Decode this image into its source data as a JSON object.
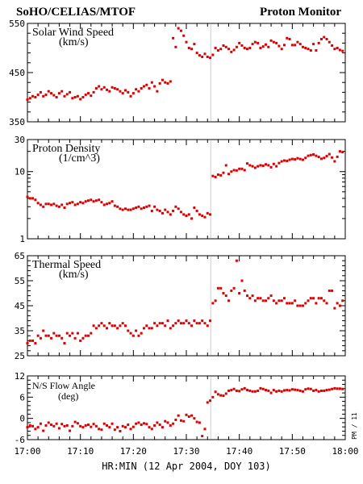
{
  "header": {
    "left_title": "SoHO/CELIAS/MTOF",
    "right_title": "Proton Monitor"
  },
  "side_label": "PM / 11",
  "xlabel": "HR:MIN (12 Apr 2004, DOY 103)",
  "colors": {
    "data": "#dd0000",
    "axis": "#000000",
    "event_line": "#cccccc"
  },
  "chart_data": [
    {
      "type": "scatter",
      "title": "Solar Wind Speed",
      "unit": "(km/s)",
      "x_ticks": [
        "17:00",
        "17:10",
        "17:20",
        "17:30",
        "17:40",
        "17:50",
        "18:00"
      ],
      "xlim_min": [
        0,
        60
      ],
      "ylim": [
        350,
        550
      ],
      "y_ticks": [
        350,
        450,
        550
      ],
      "event_line_min": 34.6,
      "series": [
        {
          "x": [
            0.0,
            0.5,
            1.0,
            1.5,
            2.0,
            2.5,
            3.0,
            3.5,
            4.0,
            4.5,
            5.0,
            5.5,
            6.0,
            6.5,
            7.0,
            7.5,
            8.0,
            8.5,
            9.0,
            9.5,
            10.0,
            10.5,
            11.0,
            11.5,
            12.0,
            12.5,
            13.0,
            13.5,
            14.0,
            14.5,
            15.0,
            15.5,
            16.0,
            16.5,
            17.0,
            17.5,
            18.0,
            18.5,
            19.0,
            19.5,
            20.0,
            20.5,
            21.0,
            21.5,
            22.0,
            22.5,
            23.0,
            23.5,
            24.0,
            24.5,
            25.0,
            25.5,
            26.0,
            26.5,
            27.0,
            27.5,
            28.0,
            28.5,
            29.0,
            29.5,
            30.0,
            30.5,
            31.0,
            31.5,
            32.0,
            32.5,
            33.0,
            33.5,
            34.0,
            34.5,
            35.0,
            35.5,
            36.0,
            36.5,
            37.0,
            37.5,
            38.0,
            38.5,
            39.0,
            39.5,
            40.0,
            40.5,
            41.0,
            41.5,
            42.0,
            42.5,
            43.0,
            43.5,
            44.0,
            44.5,
            45.0,
            45.5,
            46.0,
            46.5,
            47.0,
            47.5,
            48.0,
            48.5,
            49.0,
            49.5,
            50.0,
            50.5,
            51.0,
            51.5,
            52.0,
            52.5,
            53.0,
            53.5,
            54.0,
            54.5,
            55.0,
            55.5,
            56.0,
            56.5,
            57.0,
            57.5,
            58.0,
            58.5,
            59.0,
            59.5
          ],
          "y": [
            395,
            398,
            402,
            400,
            405,
            410,
            402,
            405,
            412,
            408,
            404,
            400,
            408,
            412,
            402,
            406,
            410,
            398,
            400,
            402,
            396,
            400,
            405,
            408,
            403,
            410,
            418,
            422,
            416,
            420,
            415,
            412,
            420,
            418,
            416,
            412,
            408,
            414,
            410,
            402,
            408,
            416,
            412,
            418,
            422,
            425,
            418,
            430,
            422,
            412,
            428,
            435,
            430,
            428,
            432,
            520,
            502,
            540,
            535,
            525,
            512,
            500,
            498,
            508,
            490,
            485,
            482,
            488,
            482,
            480,
            486,
            500,
            495,
            498,
            505,
            502,
            498,
            492,
            496,
            502,
            510,
            505,
            500,
            498,
            500,
            508,
            512,
            510,
            500,
            503,
            507,
            502,
            515,
            512,
            510,
            504,
            498,
            506,
            520,
            518,
            506,
            506,
            512,
            508,
            502,
            500,
            498,
            495,
            508,
            495,
            510,
            518,
            522,
            518,
            512,
            505,
            498,
            500,
            496,
            494
          ]
        }
      ]
    },
    {
      "type": "scatter",
      "title": "Proton Density",
      "unit": "(1/cm^3)",
      "x_ticks": [
        "17:00",
        "17:10",
        "17:20",
        "17:30",
        "17:40",
        "17:50",
        "18:00"
      ],
      "xlim_min": [
        0,
        60
      ],
      "ylim": [
        1,
        30
      ],
      "log_scale": true,
      "y_ticks": [
        1,
        10,
        30
      ],
      "event_line_min": 34.6,
      "series": [
        {
          "x": [
            0.0,
            0.5,
            1.0,
            1.5,
            2.0,
            2.5,
            3.0,
            3.5,
            4.0,
            4.5,
            5.0,
            5.5,
            6.0,
            6.5,
            7.0,
            7.5,
            8.0,
            8.5,
            9.0,
            9.5,
            10.0,
            10.5,
            11.0,
            11.5,
            12.0,
            12.5,
            13.0,
            13.5,
            14.0,
            14.5,
            15.0,
            15.5,
            16.0,
            16.5,
            17.0,
            17.5,
            18.0,
            18.5,
            19.0,
            19.5,
            20.0,
            20.5,
            21.0,
            21.5,
            22.0,
            22.5,
            23.0,
            23.5,
            24.0,
            24.5,
            25.0,
            25.5,
            26.0,
            26.5,
            27.0,
            27.5,
            28.0,
            28.5,
            29.0,
            29.5,
            30.0,
            30.5,
            31.0,
            31.5,
            32.0,
            32.5,
            33.0,
            33.5,
            34.0,
            34.5,
            35.0,
            35.5,
            36.0,
            36.5,
            37.0,
            37.5,
            38.0,
            38.5,
            39.0,
            39.5,
            40.0,
            40.5,
            41.0,
            41.5,
            42.0,
            42.5,
            43.0,
            43.5,
            44.0,
            44.5,
            45.0,
            45.5,
            46.0,
            46.5,
            47.0,
            47.5,
            48.0,
            48.5,
            49.0,
            49.5,
            50.0,
            50.5,
            51.0,
            51.5,
            52.0,
            52.5,
            53.0,
            53.5,
            54.0,
            54.5,
            55.0,
            55.5,
            56.0,
            56.5,
            57.0,
            57.5,
            58.0,
            58.5,
            59.0,
            59.5
          ],
          "y": [
            4.2,
            4.0,
            4.0,
            3.8,
            3.4,
            3.2,
            3.0,
            3.3,
            3.3,
            3.2,
            3.3,
            3.1,
            3.0,
            3.2,
            2.9,
            3.3,
            3.4,
            3.5,
            3.2,
            3.3,
            3.5,
            3.4,
            3.6,
            3.7,
            3.8,
            3.6,
            3.7,
            3.8,
            3.5,
            3.2,
            3.3,
            3.4,
            3.6,
            3.1,
            3.0,
            2.8,
            2.7,
            2.8,
            2.7,
            2.7,
            2.8,
            2.9,
            3.0,
            2.8,
            2.9,
            3.0,
            3.1,
            2.6,
            3.0,
            2.7,
            2.6,
            2.4,
            2.7,
            2.5,
            2.3,
            2.6,
            3.0,
            2.8,
            2.5,
            2.3,
            2.2,
            2.3,
            2.0,
            2.9,
            2.6,
            2.3,
            2.2,
            2.1,
            2.4,
            2.3,
            8.6,
            8.3,
            9.0,
            8.8,
            9.6,
            12.4,
            9.2,
            10.0,
            10.5,
            10.4,
            11.0,
            11.0,
            10.5,
            13.2,
            12.4,
            12.0,
            11.4,
            12.0,
            12.4,
            12.2,
            12.8,
            12.4,
            11.6,
            13.0,
            12.0,
            13.4,
            14.2,
            14.6,
            14.4,
            15.0,
            15.4,
            15.2,
            15.8,
            15.4,
            15.0,
            16.0,
            17.2,
            17.6,
            18.0,
            17.2,
            16.5,
            15.5,
            16.0,
            17.0,
            18.2,
            16.2,
            14.2,
            16.6,
            20.0,
            19.5
          ]
        }
      ]
    },
    {
      "type": "scatter",
      "title": "Thermal Speed",
      "unit": "(km/s)",
      "x_ticks": [
        "17:00",
        "17:10",
        "17:20",
        "17:30",
        "17:40",
        "17:50",
        "18:00"
      ],
      "xlim_min": [
        0,
        60
      ],
      "ylim": [
        25,
        65
      ],
      "y_ticks": [
        25,
        35,
        45,
        55,
        65
      ],
      "event_line_min": 34.6,
      "series": [
        {
          "x": [
            0.0,
            0.5,
            1.0,
            1.5,
            2.0,
            2.5,
            3.0,
            3.5,
            4.0,
            4.5,
            5.0,
            5.5,
            6.0,
            6.5,
            7.0,
            7.5,
            8.0,
            8.5,
            9.0,
            9.5,
            10.0,
            10.5,
            11.0,
            11.5,
            12.0,
            12.5,
            13.0,
            13.5,
            14.0,
            14.5,
            15.0,
            15.5,
            16.0,
            16.5,
            17.0,
            17.5,
            18.0,
            18.5,
            19.0,
            19.5,
            20.0,
            20.5,
            21.0,
            21.5,
            22.0,
            22.5,
            23.0,
            23.5,
            24.0,
            24.5,
            25.0,
            25.5,
            26.0,
            26.5,
            27.0,
            27.5,
            28.0,
            28.5,
            29.0,
            29.5,
            30.0,
            30.5,
            31.0,
            31.5,
            32.0,
            32.5,
            33.0,
            33.5,
            34.0,
            34.5,
            35.0,
            35.5,
            36.0,
            36.5,
            37.0,
            37.5,
            38.0,
            38.5,
            39.0,
            39.5,
            40.0,
            40.5,
            41.0,
            41.5,
            42.0,
            42.5,
            43.0,
            43.5,
            44.0,
            44.5,
            45.0,
            45.5,
            46.0,
            46.5,
            47.0,
            47.5,
            48.0,
            48.5,
            49.0,
            49.5,
            50.0,
            50.5,
            51.0,
            51.5,
            52.0,
            52.5,
            53.0,
            53.5,
            54.0,
            54.5,
            55.0,
            55.5,
            56.0,
            56.5,
            57.0,
            57.5,
            58.0,
            58.5,
            59.0,
            59.5
          ],
          "y": [
            30,
            31,
            31,
            30,
            33,
            32,
            35,
            33,
            33,
            32,
            34,
            33,
            33,
            32,
            30,
            34,
            33,
            34,
            32,
            34,
            31,
            32,
            33,
            33,
            34,
            37,
            36,
            37,
            38,
            37,
            36,
            38,
            37,
            37,
            36,
            37,
            38,
            37,
            35,
            34,
            33,
            35,
            33,
            34,
            36,
            37,
            36,
            36,
            38,
            37,
            38,
            38,
            37,
            39,
            36,
            37,
            38,
            39,
            38,
            38,
            39,
            38,
            37,
            39,
            38,
            38,
            39,
            38,
            37,
            39,
            46,
            47,
            52,
            52,
            50,
            49,
            47,
            51,
            52,
            63,
            50,
            55,
            51,
            49,
            48,
            49,
            47,
            48,
            48,
            47,
            47,
            48,
            49,
            47,
            46,
            47,
            47,
            48,
            46,
            46,
            46,
            47,
            45,
            45,
            45,
            46,
            47,
            48,
            48,
            46,
            48,
            48,
            47,
            46,
            51,
            51,
            44,
            46,
            45,
            47
          ]
        }
      ]
    },
    {
      "type": "scatter",
      "title": "N/S Flow Angle",
      "unit": "(deg)",
      "x_ticks": [
        "17:00",
        "17:10",
        "17:20",
        "17:30",
        "17:40",
        "17:50",
        "18:00"
      ],
      "xlim_min": [
        0,
        60
      ],
      "ylim": [
        -6,
        12
      ],
      "y_ticks": [
        -6,
        0,
        6,
        12
      ],
      "event_line_min": 34.6,
      "series": [
        {
          "x": [
            0.0,
            0.5,
            1.0,
            1.5,
            2.0,
            2.5,
            3.0,
            3.5,
            4.0,
            4.5,
            5.0,
            5.5,
            6.0,
            6.5,
            7.0,
            7.5,
            8.0,
            8.5,
            9.0,
            9.5,
            10.0,
            10.5,
            11.0,
            11.5,
            12.0,
            12.5,
            13.0,
            13.5,
            14.0,
            14.5,
            15.0,
            15.5,
            16.0,
            16.5,
            17.0,
            17.5,
            18.0,
            18.5,
            19.0,
            19.5,
            20.0,
            20.5,
            21.0,
            21.5,
            22.0,
            22.5,
            23.0,
            23.5,
            24.0,
            24.5,
            25.0,
            25.5,
            26.0,
            26.5,
            27.0,
            27.5,
            28.0,
            28.5,
            29.0,
            29.5,
            30.0,
            30.5,
            31.0,
            31.5,
            32.0,
            32.5,
            33.0,
            33.5,
            34.0,
            34.5,
            35.0,
            35.5,
            36.0,
            36.5,
            37.0,
            37.5,
            38.0,
            38.5,
            39.0,
            39.5,
            40.0,
            40.5,
            41.0,
            41.5,
            42.0,
            42.5,
            43.0,
            43.5,
            44.0,
            44.5,
            45.0,
            45.5,
            46.0,
            46.5,
            47.0,
            47.5,
            48.0,
            48.5,
            49.0,
            49.5,
            50.0,
            50.5,
            51.0,
            51.5,
            52.0,
            52.5,
            53.0,
            53.5,
            54.0,
            54.5,
            55.0,
            55.5,
            56.0,
            56.5,
            57.0,
            57.5,
            58.0,
            58.5,
            59.0,
            59.5
          ],
          "y": [
            -2.5,
            -2.0,
            -2.2,
            -3.0,
            -2.5,
            -1.5,
            -3.5,
            -2.0,
            -1.2,
            -1.8,
            -2.2,
            -1.5,
            -2.8,
            -1.6,
            -2.2,
            -2.0,
            -3.5,
            -2.2,
            -1.0,
            -1.4,
            -2.2,
            -2.5,
            -2.0,
            -1.8,
            -2.4,
            -1.6,
            -2.2,
            -3.0,
            -3.2,
            -1.5,
            -2.0,
            -2.5,
            -1.5,
            -3.2,
            -2.5,
            -3.6,
            -2.2,
            -2.5,
            -1.8,
            -3.0,
            -2.4,
            -1.5,
            -1.2,
            -1.8,
            -1.4,
            -1.6,
            -2.5,
            -3.0,
            -2.0,
            -1.2,
            -1.8,
            -2.5,
            -0.8,
            -1.2,
            -2.0,
            -1.5,
            -0.4,
            0.8,
            -0.6,
            -0.8,
            1.0,
            0.5,
            0.8,
            0.0,
            -1.0,
            -1.2,
            -5.0,
            -3.0,
            4.5,
            5.0,
            6.0,
            7.5,
            6.8,
            6.5,
            6.4,
            7.0,
            7.8,
            8.0,
            8.3,
            7.8,
            7.7,
            8.2,
            8.5,
            8.0,
            7.8,
            7.6,
            7.6,
            7.8,
            8.5,
            8.3,
            8.0,
            7.8,
            7.2,
            8.0,
            7.6,
            7.8,
            7.6,
            7.9,
            8.0,
            7.9,
            8.2,
            8.1,
            8.0,
            7.8,
            7.6,
            8.2,
            8.4,
            8.3,
            7.8,
            8.0,
            7.6,
            7.8,
            7.8,
            8.0,
            8.1,
            8.3,
            8.5,
            8.4,
            8.4,
            8.3
          ]
        }
      ]
    }
  ]
}
